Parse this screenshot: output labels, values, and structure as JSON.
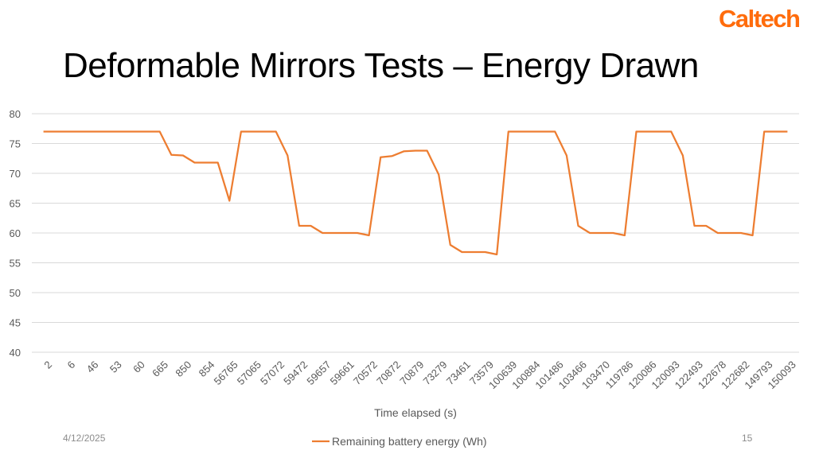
{
  "header": {
    "logo_text": "Caltech",
    "logo_color": "#FF6C0C",
    "title": "Deformable Mirrors Tests – Energy Drawn"
  },
  "footer": {
    "date": "4/12/2025",
    "page_number": "15"
  },
  "chart_data": {
    "type": "line",
    "title": "",
    "xlabel": "Time elapsed (s)",
    "ylabel": "",
    "ylim": [
      40,
      80
    ],
    "yticks": [
      40,
      45,
      50,
      55,
      60,
      65,
      70,
      75,
      80
    ],
    "grid": true,
    "legend_position": "bottom",
    "categories": [
      "2",
      "6",
      "46",
      "53",
      "60",
      "665",
      "850",
      "854",
      "56765",
      "57065",
      "57072",
      "59472",
      "59657",
      "59661",
      "70572",
      "70872",
      "70879",
      "73279",
      "73461",
      "73579",
      "100639",
      "100884",
      "101486",
      "103466",
      "103470",
      "119786",
      "120086",
      "120093",
      "122493",
      "122678",
      "122682",
      "149793",
      "150093"
    ],
    "x": [
      "2",
      "4",
      "6",
      "26",
      "46",
      "50",
      "53",
      "57",
      "60",
      "64",
      "665",
      "758",
      "850",
      "852",
      "854",
      "28810",
      "56765",
      "56915",
      "57065",
      "57069",
      "57072",
      "58272",
      "59472",
      "59565",
      "59657",
      "59659",
      "59661",
      "65117",
      "70572",
      "70722",
      "70872",
      "70876",
      "70879",
      "72079",
      "73279",
      "73370",
      "73461",
      "73520",
      "73579",
      "87109",
      "100639",
      "100762",
      "100884",
      "101185",
      "101486",
      "102476",
      "103466",
      "103468",
      "103470",
      "111628",
      "119786",
      "119936",
      "120086",
      "120090",
      "120093",
      "121293",
      "122493",
      "122586",
      "122678",
      "122680",
      "122682",
      "136238",
      "149793",
      "149943",
      "150093"
    ],
    "series": [
      {
        "name": "Remaining battery energy (Wh)",
        "color": "#ED7D31",
        "values": [
          77,
          77,
          77,
          77,
          77,
          77,
          77,
          77,
          77,
          77,
          77,
          73.1,
          73,
          71.8,
          71.8,
          71.8,
          65.4,
          77,
          77,
          77,
          77,
          73,
          61.2,
          61.2,
          60,
          60,
          60,
          60,
          59.6,
          72.7,
          72.9,
          73.7,
          73.8,
          73.8,
          69.8,
          58,
          56.8,
          56.8,
          56.8,
          56.4,
          77,
          77,
          77,
          77,
          77,
          73,
          61.2,
          60,
          60,
          60,
          59.6,
          77,
          77,
          77,
          77,
          73,
          61.2,
          61.2,
          60,
          60,
          60,
          59.6,
          77,
          77,
          77
        ]
      }
    ]
  }
}
